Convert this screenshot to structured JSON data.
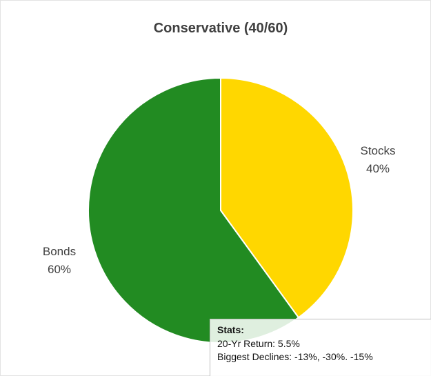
{
  "chart_data": {
    "type": "pie",
    "title": "Conservative (40/60)",
    "slices": [
      {
        "label": "Stocks",
        "value": 40,
        "value_label": "40%",
        "color": "#FFD700"
      },
      {
        "label": "Bonds",
        "value": 60,
        "value_label": "60%",
        "color": "#228B22"
      }
    ],
    "start": "12 o'clock",
    "direction": "clockwise"
  },
  "annotation": {
    "title": "Stats:",
    "lines": [
      "20-Yr Return: 5.5%",
      "Biggest Declines: -13%, -30%. -15%"
    ]
  }
}
